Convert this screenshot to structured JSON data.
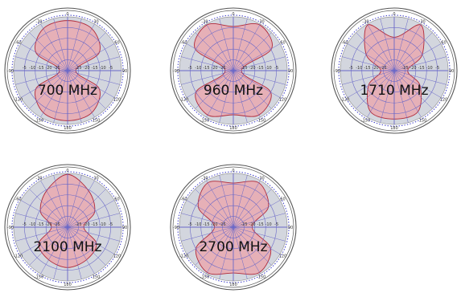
{
  "chart_data": [
    {
      "type": "polar",
      "label": "700 MHz",
      "angle_tick_labels": [
        "0",
        "30",
        "-30",
        "60",
        "-60",
        "90",
        "-90",
        "120",
        "-120",
        "150",
        "-150",
        "180"
      ],
      "radial_tick_labels": [
        "-5",
        "-10",
        "-15",
        "-20",
        "-25"
      ],
      "pattern_angles_deg": [
        0,
        30,
        60,
        90,
        120,
        150,
        180,
        210,
        240,
        270,
        300,
        330
      ],
      "pattern_radius": [
        0.93,
        0.9,
        0.68,
        0.15,
        0.68,
        0.9,
        0.93,
        0.9,
        0.68,
        0.15,
        0.68,
        0.9
      ]
    },
    {
      "type": "polar",
      "label": "960 MHz",
      "angle_tick_labels": [
        "0",
        "30",
        "-30",
        "60",
        "-60",
        "90",
        "-90",
        "120",
        "-120",
        "150",
        "-150",
        "180"
      ],
      "radial_tick_labels": [
        "-5",
        "-10",
        "-15",
        "-20",
        "-25"
      ],
      "pattern_angles_deg": [
        0,
        30,
        60,
        90,
        120,
        150,
        180,
        210,
        240,
        270,
        300,
        330
      ],
      "pattern_radius": [
        0.82,
        0.98,
        0.82,
        0.15,
        0.8,
        0.95,
        0.82,
        0.95,
        0.8,
        0.15,
        0.82,
        0.98
      ]
    },
    {
      "type": "polar",
      "label": "1710 MHz",
      "angle_tick_labels": [
        "0",
        "30",
        "-30",
        "60",
        "-60",
        "90",
        "-90",
        "120",
        "-120",
        "150",
        "-150",
        "180"
      ],
      "radial_tick_labels": [
        "-5",
        "-10",
        "-15",
        "-20",
        "-25"
      ],
      "pattern_angles_deg": [
        0,
        30,
        60,
        90,
        120,
        150,
        180,
        210,
        240,
        270,
        300,
        330
      ],
      "pattern_radius": [
        0.62,
        0.98,
        0.6,
        0.25,
        0.55,
        0.88,
        0.9,
        0.88,
        0.55,
        0.25,
        0.6,
        0.98
      ]
    },
    {
      "type": "polar",
      "label": "2100 MHz",
      "angle_tick_labels": [
        "0",
        "30",
        "-30",
        "60",
        "-60",
        "90",
        "-90",
        "120",
        "-120",
        "150",
        "-150",
        "180"
      ],
      "radial_tick_labels": [
        "-5",
        "-10",
        "-15",
        "-20",
        "-25"
      ],
      "pattern_angles_deg": [
        0,
        30,
        60,
        90,
        120,
        150,
        180,
        210,
        240,
        270,
        300,
        330
      ],
      "pattern_radius": [
        0.98,
        0.78,
        0.58,
        0.3,
        0.62,
        0.7,
        0.75,
        0.7,
        0.62,
        0.3,
        0.58,
        0.78
      ]
    },
    {
      "type": "polar",
      "label": "2700 MHz",
      "angle_tick_labels": [
        "0",
        "30",
        "-30",
        "60",
        "-60",
        "90",
        "-90",
        "120",
        "-120",
        "150",
        "-150",
        "180"
      ],
      "radial_tick_labels": [
        "-5",
        "-10",
        "-15",
        "-20",
        "-25"
      ],
      "pattern_angles_deg": [
        0,
        30,
        60,
        90,
        120,
        150,
        180,
        210,
        240,
        270,
        300,
        330
      ],
      "pattern_radius": [
        0.82,
        0.95,
        0.75,
        0.35,
        0.8,
        0.97,
        0.85,
        0.97,
        0.8,
        0.35,
        0.75,
        0.95
      ]
    }
  ],
  "colors": {
    "background_disc": "#d3d6de",
    "outer_ring": "#555555",
    "grid_line": "#6a68c8",
    "dotted_circle": "#3c3cc8",
    "pattern_fill": "#e9a9b0",
    "pattern_stroke": "#b02a3a",
    "text": "#111111"
  }
}
